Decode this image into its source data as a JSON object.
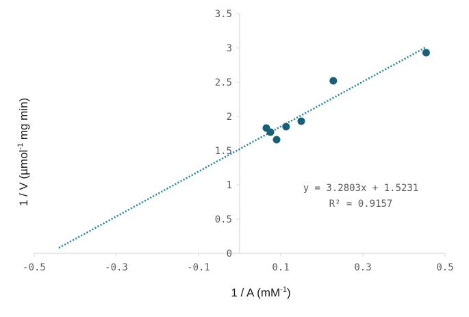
{
  "chart_data": {
    "type": "scatter",
    "title": "",
    "xlabel": {
      "main": "1 / A (mM",
      "sup": "-1",
      "end": ")"
    },
    "ylabel": {
      "main": "1 / V (µmol",
      "sup": "-1",
      "end": " mg min)"
    },
    "xlim": [
      -0.5,
      0.5
    ],
    "ylim": [
      0,
      3.5
    ],
    "x_ticks": [
      -0.5,
      -0.3,
      -0.1,
      0.1,
      0.3,
      0.5
    ],
    "x_tick_labels": [
      "-0.5",
      "-0.3",
      "-0.1",
      "0.1",
      "0.3",
      "0.5"
    ],
    "y_ticks": [
      0,
      0.5,
      1,
      1.5,
      2,
      2.5,
      3,
      3.5
    ],
    "y_tick_labels": [
      "0",
      "0.5",
      "1",
      "1.5",
      "2",
      "2.5",
      "3",
      "3.5"
    ],
    "grid": false,
    "series": [
      {
        "points": [
          {
            "x": 0.065,
            "y": 1.83
          },
          {
            "x": 0.075,
            "y": 1.77
          },
          {
            "x": 0.09,
            "y": 1.66
          },
          {
            "x": 0.113,
            "y": 1.85
          },
          {
            "x": 0.15,
            "y": 1.93
          },
          {
            "x": 0.228,
            "y": 2.52
          },
          {
            "x": 0.454,
            "y": 2.93
          }
        ],
        "color": "#1b5e78"
      }
    ],
    "trendline": {
      "type": "linear",
      "slope": 3.2803,
      "intercept": 1.5231,
      "x_range": [
        -0.44,
        0.452
      ],
      "style": "dotted",
      "color": "#2e8b9e",
      "equation_text": "y = 3.2803x + 1.5231",
      "r2_text": "R² = 0.9157"
    },
    "axis_color": "#d9d9d9"
  }
}
